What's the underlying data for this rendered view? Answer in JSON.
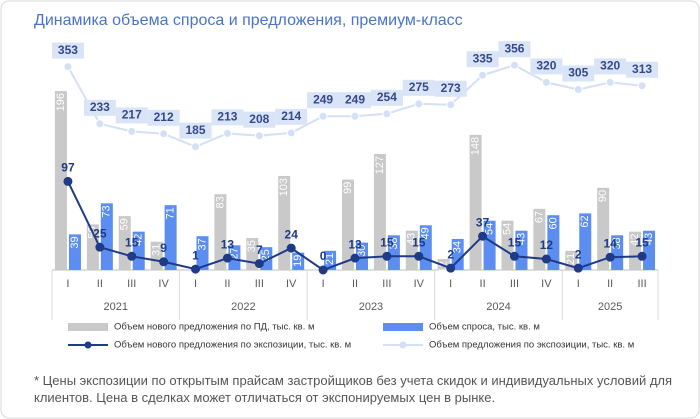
{
  "chart_data": {
    "type": "bar",
    "title": "Динамика объема спроса и предложения, премиум-класс",
    "groups": [
      {
        "label": "2021",
        "categories": [
          "I",
          "II",
          "III",
          "IV"
        ]
      },
      {
        "label": "2022",
        "categories": [
          "I",
          "II",
          "III",
          "IV"
        ]
      },
      {
        "label": "2023",
        "categories": [
          "I",
          "II",
          "III",
          "IV"
        ]
      },
      {
        "label": "2024",
        "categories": [
          "I",
          "II",
          "III",
          "IV"
        ]
      },
      {
        "label": "2025",
        "categories": [
          "I",
          "II",
          "III"
        ]
      }
    ],
    "ylim": [
      0,
      230
    ],
    "y2lim": [
      -74,
      367
    ],
    "legend": "bottom",
    "series": [
      {
        "name": "Объем нового предложения по ПД, тыс. кв. м",
        "type": "bar",
        "color": "#c9c9c9",
        "values": [
          196,
          50,
          59,
          31,
          null,
          83,
          35,
          103,
          null,
          99,
          127,
          43,
          12,
          148,
          54,
          67,
          21,
          90,
          42
        ]
      },
      {
        "name": "Объем спроса, тыс. кв. м",
        "type": "bar",
        "color": "#5b8ef0",
        "values": [
          39,
          73,
          42,
          71,
          37,
          27,
          25,
          19,
          21,
          30,
          38,
          49,
          34,
          54,
          43,
          60,
          62,
          38,
          43
        ]
      },
      {
        "name": "Объем нового предложения по экспозиции, тыс. кв. м",
        "type": "line",
        "color": "#1f3a86",
        "values": [
          97,
          25,
          15,
          9,
          1,
          13,
          7,
          24,
          0,
          13,
          15,
          15,
          2,
          37,
          15,
          12,
          2,
          14,
          15
        ]
      },
      {
        "name": "Объем предложения по экспозиции, тыс. кв. м",
        "type": "line",
        "color": "#d3e0f6",
        "axis": "y2",
        "values": [
          353,
          233,
          217,
          212,
          185,
          213,
          208,
          214,
          249,
          249,
          254,
          275,
          273,
          335,
          356,
          320,
          305,
          320,
          313
        ]
      }
    ],
    "footnote": "* Цены экспозиции по открытым прайсам застройщиков без учета скидок и индивидуальных условий для клиентов. Цена в сделках может отличаться от экспонируемых цен в рынке."
  }
}
